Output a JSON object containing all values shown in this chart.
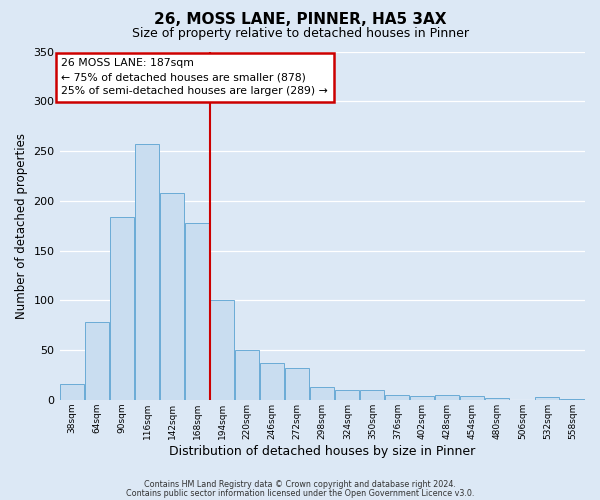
{
  "title": "26, MOSS LANE, PINNER, HA5 3AX",
  "subtitle": "Size of property relative to detached houses in Pinner",
  "xlabel": "Distribution of detached houses by size in Pinner",
  "ylabel": "Number of detached properties",
  "bin_labels": [
    "38sqm",
    "64sqm",
    "90sqm",
    "116sqm",
    "142sqm",
    "168sqm",
    "194sqm",
    "220sqm",
    "246sqm",
    "272sqm",
    "298sqm",
    "324sqm",
    "350sqm",
    "376sqm",
    "402sqm",
    "428sqm",
    "454sqm",
    "480sqm",
    "506sqm",
    "532sqm",
    "558sqm"
  ],
  "bin_left_edges": [
    38,
    64,
    90,
    116,
    142,
    168,
    194,
    220,
    246,
    272,
    298,
    324,
    350,
    376,
    402,
    428,
    454,
    480,
    506,
    532,
    558
  ],
  "bar_heights": [
    16,
    78,
    184,
    257,
    208,
    178,
    100,
    50,
    37,
    32,
    13,
    10,
    10,
    5,
    4,
    5,
    4,
    2,
    0,
    3,
    1
  ],
  "bar_color": "#c9ddf0",
  "bar_edgecolor": "#6aabd6",
  "vline_x": 194,
  "vline_color": "#cc0000",
  "ylim": [
    0,
    350
  ],
  "yticks": [
    0,
    50,
    100,
    150,
    200,
    250,
    300,
    350
  ],
  "annotation_title": "26 MOSS LANE: 187sqm",
  "annotation_line1": "← 75% of detached houses are smaller (878)",
  "annotation_line2": "25% of semi-detached houses are larger (289) →",
  "annotation_box_edgecolor": "#cc0000",
  "footer1": "Contains HM Land Registry data © Crown copyright and database right 2024.",
  "footer2": "Contains public sector information licensed under the Open Government Licence v3.0.",
  "bg_color": "#dce8f5",
  "plot_bg_color": "#dce8f5",
  "grid_color": "#ffffff"
}
